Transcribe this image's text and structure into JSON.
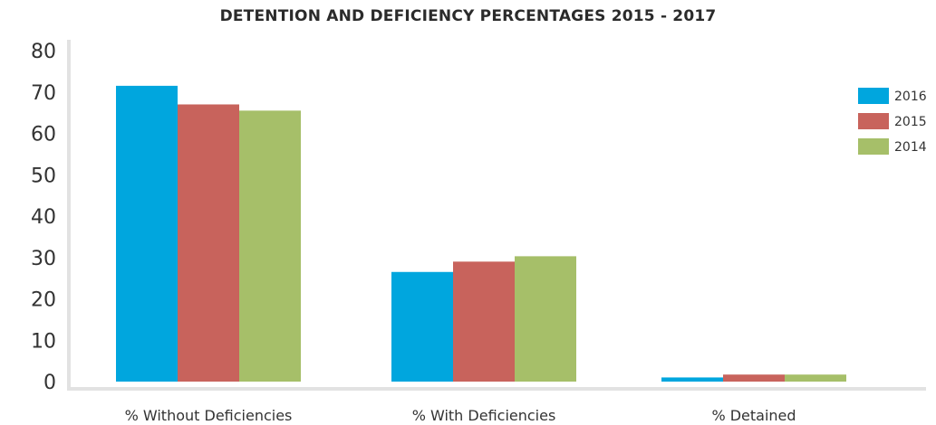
{
  "chart_data": {
    "type": "bar",
    "title": "DETENTION AND DEFICIENCY PERCENTAGES 2015 - 2017",
    "xlabel": "",
    "ylabel": "",
    "categories": [
      "% Without Deficiencies",
      "% With Deficiencies",
      "% Detained"
    ],
    "series": [
      {
        "name": "2016",
        "color": "#00a6de",
        "values": [
          71.5,
          26.5,
          1.0
        ]
      },
      {
        "name": "2015",
        "color": "#c8635c",
        "values": [
          67,
          29,
          1.7
        ]
      },
      {
        "name": "2014",
        "color": "#a6bf69",
        "values": [
          65.5,
          30.3,
          1.7
        ]
      }
    ],
    "ylim": [
      0,
      80
    ],
    "yticks": [
      0,
      10,
      20,
      30,
      40,
      50,
      60,
      70,
      80
    ],
    "grid": false,
    "legend_position": "right"
  }
}
